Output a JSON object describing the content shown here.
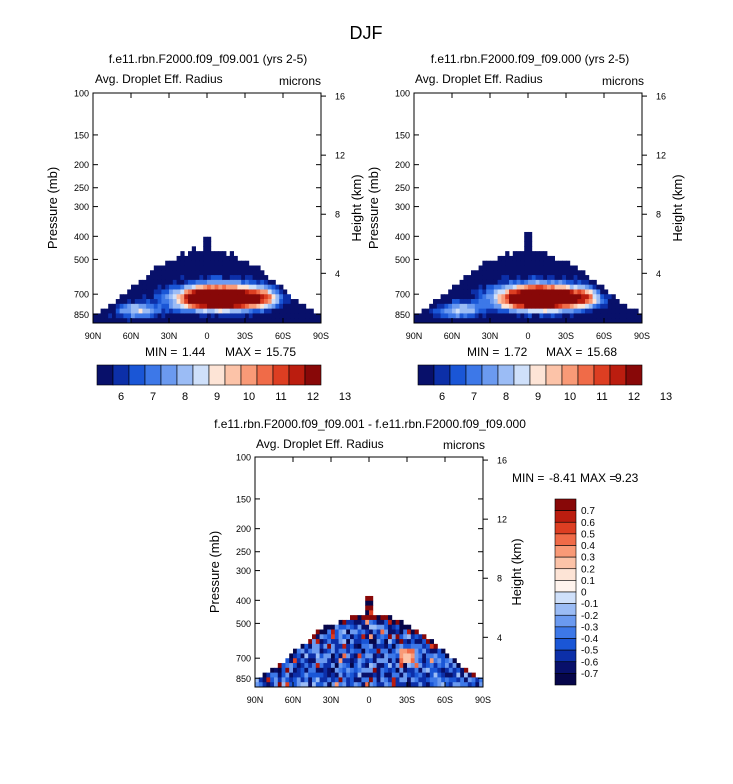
{
  "chart_data": {
    "title": "DJF",
    "panels": [
      {
        "type": "heatmap",
        "title": "f.e11.rbn.F2000.f09_f09.001 (yrs 2-5)",
        "left_label": "Avg. Droplet Eff. Radius",
        "right_label": "microns",
        "ylabel": "Pressure (mb)",
        "ylabel2": "Height (km)",
        "x_ticks": [
          "90N",
          "60N",
          "30N",
          "0",
          "30S",
          "60S",
          "90S"
        ],
        "y_ticks": [
          "100",
          "150",
          "200",
          "250",
          "300",
          "400",
          "500",
          "700",
          "850"
        ],
        "y2_ticks": [
          "16",
          "12",
          "8",
          "4"
        ],
        "min_label": "MIN =",
        "min_value": "1.44",
        "max_label": "MAX =",
        "max_value": "15.75",
        "field": "full",
        "min": 1.44,
        "max": 15.75
      },
      {
        "type": "heatmap",
        "title": "f.e11.rbn.F2000.f09_f09.000 (yrs 2-5)",
        "left_label": "Avg. Droplet Eff. Radius",
        "right_label": "microns",
        "ylabel": "Pressure (mb)",
        "ylabel2": "Height (km)",
        "x_ticks": [
          "90N",
          "60N",
          "30N",
          "0",
          "30S",
          "60S",
          "90S"
        ],
        "y_ticks": [
          "100",
          "150",
          "200",
          "250",
          "300",
          "400",
          "500",
          "700",
          "850"
        ],
        "y2_ticks": [
          "16",
          "12",
          "8",
          "4"
        ],
        "min_label": "MIN =",
        "min_value": "1.72",
        "max_label": "MAX =",
        "max_value": "15.68",
        "field": "full",
        "min": 1.72,
        "max": 15.68
      },
      {
        "type": "heatmap",
        "title": "f.e11.rbn.F2000.f09_f09.001 - f.e11.rbn.F2000.f09_f09.000",
        "left_label": "Avg. Droplet Eff. Radius",
        "right_label": "microns",
        "ylabel": "Pressure (mb)",
        "ylabel2": "Height (km)",
        "x_ticks": [
          "90N",
          "60N",
          "30N",
          "0",
          "30S",
          "60S",
          "90S"
        ],
        "y_ticks": [
          "100",
          "150",
          "200",
          "250",
          "300",
          "400",
          "500",
          "700",
          "850"
        ],
        "y2_ticks": [
          "16",
          "12",
          "8",
          "4"
        ],
        "min_label": "MIN =",
        "min_value": "-8.41",
        "max_label": "MAX =",
        "max_value": "9.23",
        "field": "diff",
        "min": -8.41,
        "max": 9.23
      }
    ],
    "colorbar_main": {
      "labels": [
        "6",
        "7",
        "8",
        "9",
        "10",
        "11",
        "12",
        "13"
      ],
      "colors": [
        "#08106a",
        "#0c2fa8",
        "#1a56d6",
        "#3d78e8",
        "#6b9af0",
        "#9bbcf5",
        "#cfe0fa",
        "#fde4d6",
        "#fcc3a8",
        "#f99a77",
        "#f06b48",
        "#dd3e22",
        "#bb1d0f",
        "#880808"
      ]
    },
    "colorbar_diff": {
      "labels": [
        "0.7",
        "0.6",
        "0.5",
        "0.4",
        "0.3",
        "0.2",
        "0.1",
        "0",
        "-0.1",
        "-0.2",
        "-0.3",
        "-0.4",
        "-0.5",
        "-0.6",
        "-0.7"
      ],
      "colors": [
        "#880808",
        "#bb1d0f",
        "#dd3e22",
        "#f06b48",
        "#f99a77",
        "#fcc3a8",
        "#fde4d6",
        "#fff4ee",
        "#cfe0fa",
        "#9bbcf5",
        "#6b9af0",
        "#3d78e8",
        "#1a56d6",
        "#0c2fa8",
        "#08106a",
        "#06064a"
      ]
    }
  }
}
